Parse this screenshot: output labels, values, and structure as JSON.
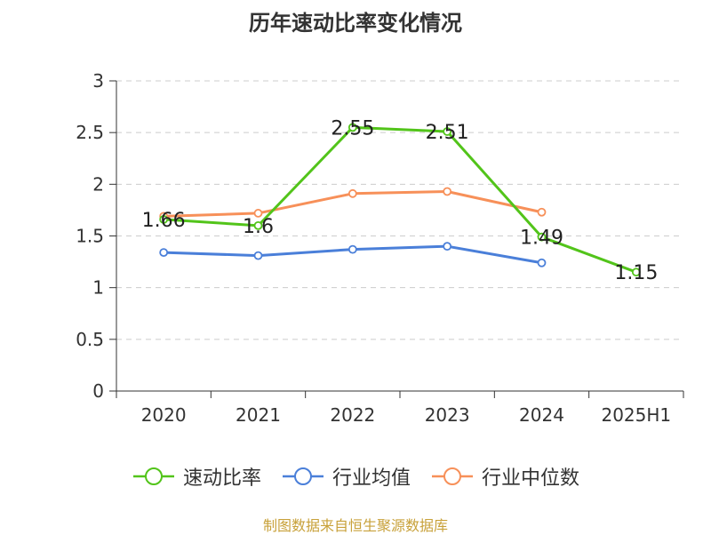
{
  "title": "历年速动比率变化情况",
  "source": "制图数据来自恒生聚源数据库",
  "chart_data": {
    "type": "line",
    "categories": [
      "2020",
      "2021",
      "2022",
      "2023",
      "2024",
      "2025H1"
    ],
    "ylim": [
      0,
      3
    ],
    "yticks": [
      "0",
      "0.5",
      "1",
      "1.5",
      "2",
      "2.5",
      "3"
    ],
    "grid": true,
    "legend_position": "bottom",
    "series": [
      {
        "name": "速动比率",
        "color": "#52c41a",
        "values": [
          1.66,
          1.6,
          2.55,
          2.51,
          1.49,
          1.15
        ],
        "labels": [
          "1.66",
          "1.6",
          "2.55",
          "2.51",
          "1.49",
          "1.15"
        ]
      },
      {
        "name": "行业均值",
        "color": "#4a7fd9",
        "values": [
          1.34,
          1.31,
          1.37,
          1.4,
          1.24,
          null
        ]
      },
      {
        "name": "行业中位数",
        "color": "#f79059",
        "values": [
          1.69,
          1.72,
          1.91,
          1.93,
          1.73,
          null
        ]
      }
    ]
  }
}
